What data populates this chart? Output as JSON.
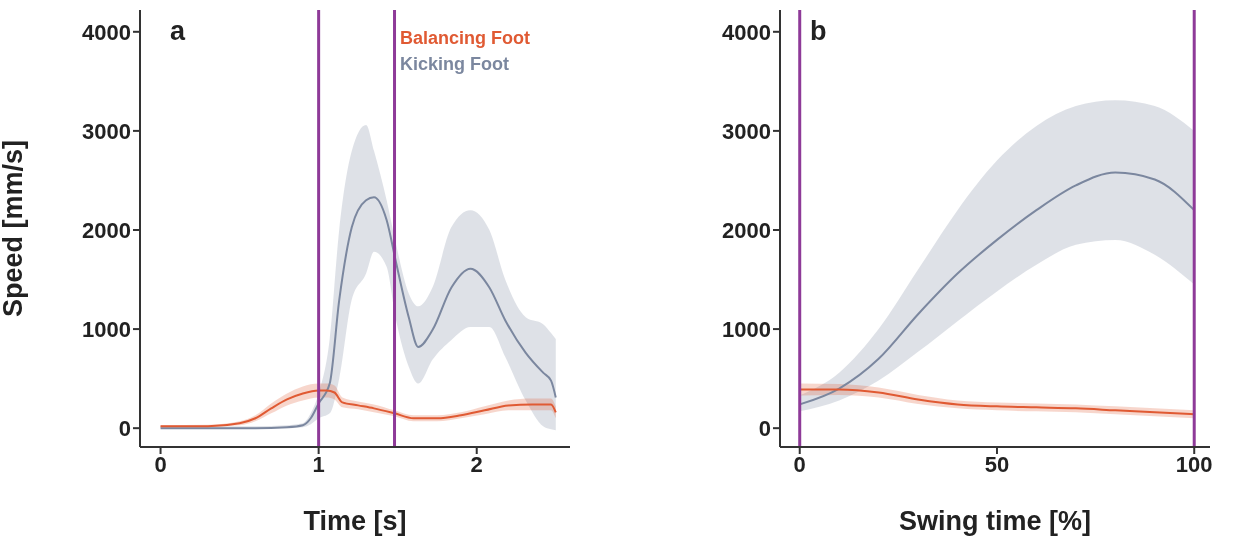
{
  "chart_data": [
    {
      "type": "line",
      "title": "a",
      "xlabel": "Time [s]",
      "ylabel": "Speed [mm/s]",
      "xlim": [
        -0.13,
        2.59
      ],
      "ylim": [
        -190,
        4220
      ],
      "xticks": [
        0,
        1,
        2
      ],
      "yticks": [
        0,
        1000,
        2000,
        3000,
        4000
      ],
      "grid": false,
      "legend": "top right",
      "marker": "none",
      "ref_lines": [
        {
          "axis": "x",
          "value": 1,
          "color": "#8e3a98"
        },
        {
          "axis": "x",
          "value": 1.48,
          "color": "#8e3a98"
        }
      ],
      "series": [
        {
          "name": "Kicking Foot",
          "color": "#7b879f",
          "x": [
            0,
            0.3,
            0.6,
            0.8,
            0.9,
            0.95,
            1.0,
            1.07,
            1.13,
            1.21,
            1.3,
            1.35,
            1.43,
            1.49,
            1.57,
            1.63,
            1.72,
            1.84,
            1.96,
            2.08,
            2.18,
            2.31,
            2.42,
            2.47,
            2.5
          ],
          "values": [
            0,
            0,
            0,
            10,
            30,
            100,
            250,
            450,
            1290,
            2030,
            2300,
            2330,
            2100,
            1670,
            1120,
            820,
            990,
            1420,
            1610,
            1420,
            1090,
            760,
            560,
            480,
            310
          ],
          "lower": [
            0,
            0,
            0,
            0,
            10,
            40,
            100,
            150,
            500,
            1300,
            1560,
            1780,
            1630,
            1090,
            620,
            450,
            690,
            890,
            1020,
            1020,
            720,
            280,
            20,
            -10,
            -20
          ],
          "upper": [
            20,
            20,
            20,
            30,
            50,
            150,
            350,
            900,
            2000,
            2800,
            3060,
            2800,
            2300,
            1850,
            1360,
            1230,
            1420,
            2030,
            2200,
            2000,
            1500,
            1120,
            1050,
            960,
            900
          ]
        },
        {
          "name": "Balancing Foot",
          "color": "#e05a33",
          "x": [
            0,
            0.3,
            0.5,
            0.6,
            0.7,
            0.8,
            0.9,
            1.0,
            1.05,
            1.1,
            1.15,
            1.25,
            1.35,
            1.48,
            1.6,
            1.75,
            1.9,
            2.05,
            2.2,
            2.35,
            2.47,
            2.5
          ],
          "values": [
            20,
            20,
            50,
            100,
            200,
            290,
            350,
            380,
            380,
            360,
            260,
            230,
            200,
            150,
            100,
            100,
            130,
            180,
            230,
            240,
            240,
            160
          ],
          "lower": [
            10,
            15,
            30,
            70,
            150,
            230,
            280,
            310,
            310,
            290,
            210,
            190,
            160,
            120,
            70,
            70,
            100,
            140,
            180,
            180,
            180,
            100
          ],
          "upper": [
            30,
            35,
            70,
            130,
            250,
            350,
            420,
            450,
            450,
            430,
            310,
            270,
            240,
            180,
            130,
            130,
            160,
            220,
            280,
            300,
            300,
            220
          ]
        }
      ]
    },
    {
      "type": "line",
      "title": "b",
      "xlabel": "Swing time [%]",
      "xlim": [
        -5,
        104
      ],
      "ylim": [
        -190,
        4220
      ],
      "xticks": [
        0,
        50,
        100
      ],
      "yticks": [
        0,
        1000,
        2000,
        3000,
        4000
      ],
      "grid": false,
      "legend": false,
      "marker": "none",
      "ref_lines": [
        {
          "axis": "x",
          "value": 0,
          "color": "#8e3a98"
        },
        {
          "axis": "x",
          "value": 100,
          "color": "#8e3a98"
        }
      ],
      "series": [
        {
          "color": "#7b879f",
          "x": [
            0,
            10,
            20,
            30,
            40,
            50,
            60,
            70,
            80,
            90,
            100
          ],
          "values": [
            240,
            400,
            700,
            1150,
            1560,
            1900,
            2200,
            2450,
            2580,
            2510,
            2200
          ],
          "lower": [
            170,
            280,
            480,
            770,
            1080,
            1380,
            1650,
            1850,
            1900,
            1750,
            1450
          ],
          "upper": [
            330,
            560,
            1000,
            1600,
            2200,
            2700,
            3050,
            3250,
            3310,
            3250,
            3000
          ]
        },
        {
          "color": "#e05a33",
          "x": [
            0,
            10,
            20,
            30,
            40,
            50,
            60,
            70,
            80,
            90,
            100
          ],
          "values": [
            390,
            390,
            360,
            290,
            240,
            220,
            210,
            200,
            180,
            160,
            140
          ],
          "lower": [
            330,
            335,
            310,
            245,
            200,
            180,
            170,
            160,
            140,
            120,
            100
          ],
          "upper": [
            450,
            445,
            410,
            335,
            280,
            260,
            250,
            240,
            220,
            200,
            180
          ]
        }
      ]
    }
  ]
}
